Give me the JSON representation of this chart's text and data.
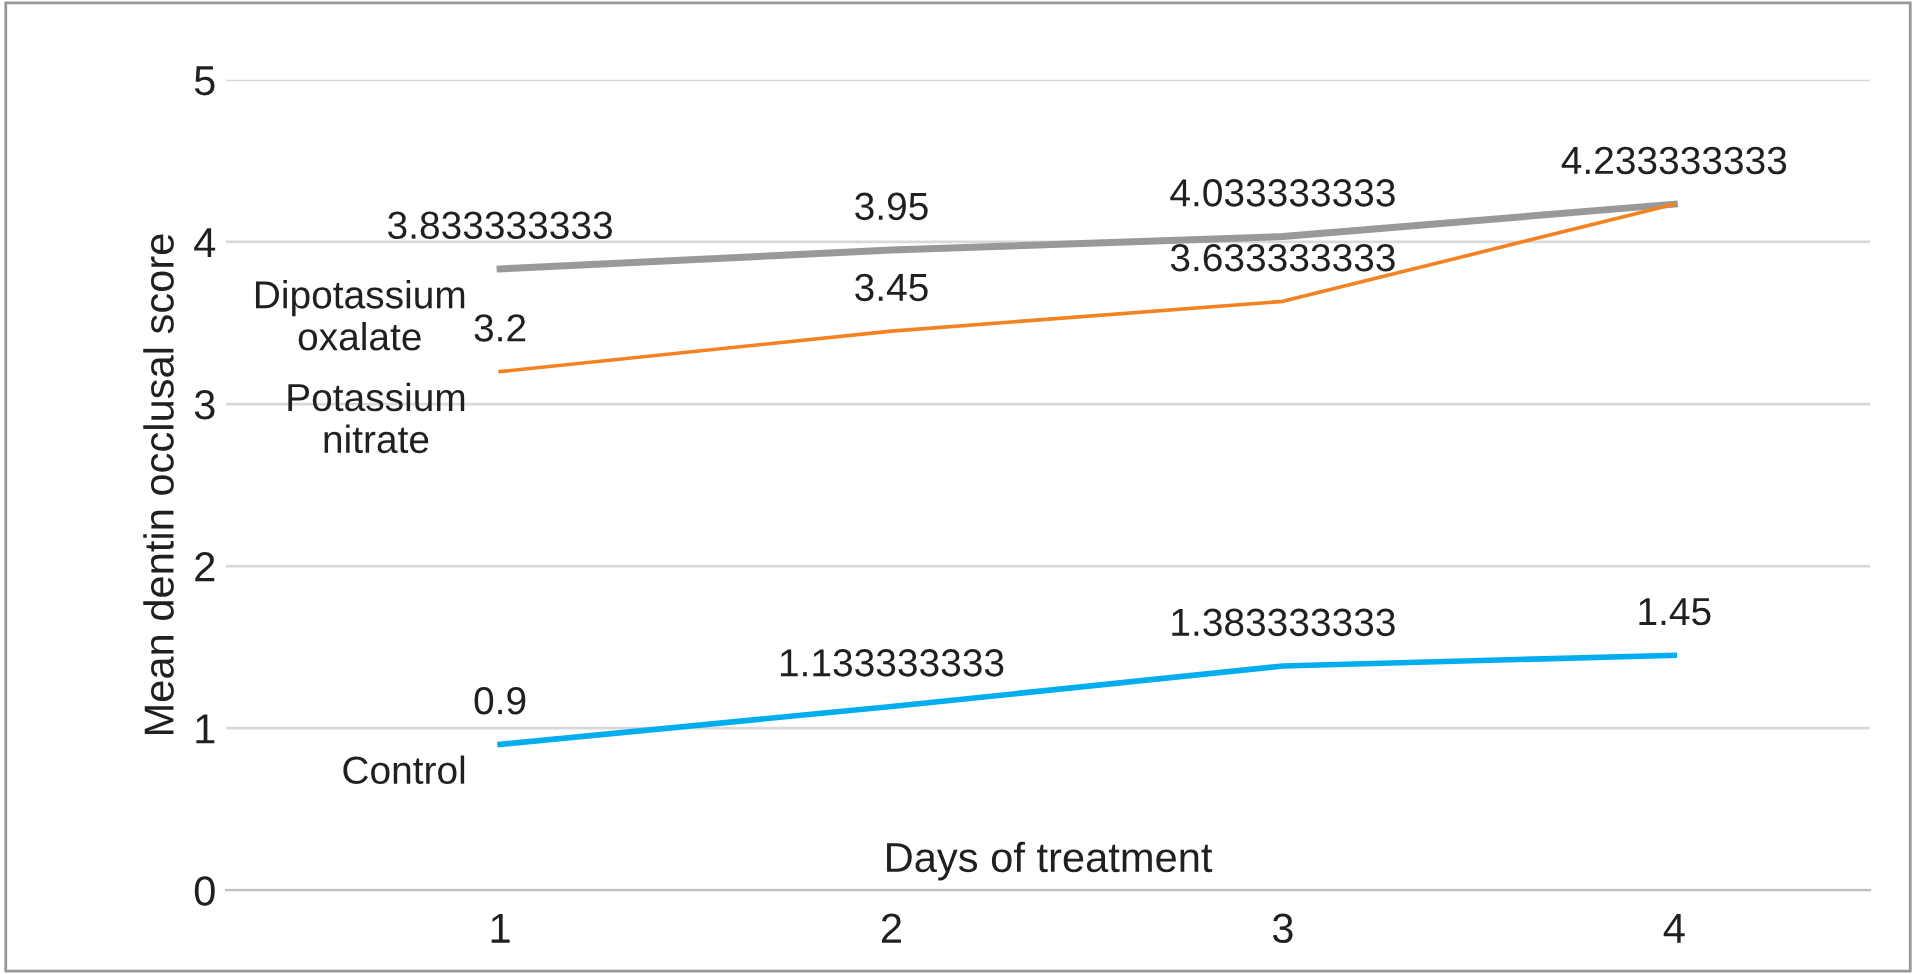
{
  "chart_data": {
    "type": "line",
    "xlabel": "Days of treatment",
    "ylabel": "Mean dentin occlusal score",
    "categories": [
      "1",
      "2",
      "3",
      "4"
    ],
    "series": [
      {
        "name": "Dipotassium oxalate",
        "color": "#999999",
        "values": [
          3.833333333,
          3.95,
          4.033333333,
          4.233333333
        ]
      },
      {
        "name": "Potassium nitrate",
        "color": "#f58220",
        "values": [
          3.2,
          3.45,
          3.633333333,
          4.233333333
        ],
        "value_labels": [
          "3.2",
          "3.45",
          "3.633333333",
          null
        ]
      },
      {
        "name": "Control",
        "color": "#00aeef",
        "values": [
          0.9,
          1.133333333,
          1.383333333,
          1.45
        ]
      }
    ],
    "ylim": [
      0,
      5
    ],
    "yticks": [
      0,
      1,
      2,
      3,
      4,
      5
    ],
    "grid": "y",
    "data_labels": true,
    "legend": false,
    "marker": "none",
    "line_style": "solid"
  }
}
